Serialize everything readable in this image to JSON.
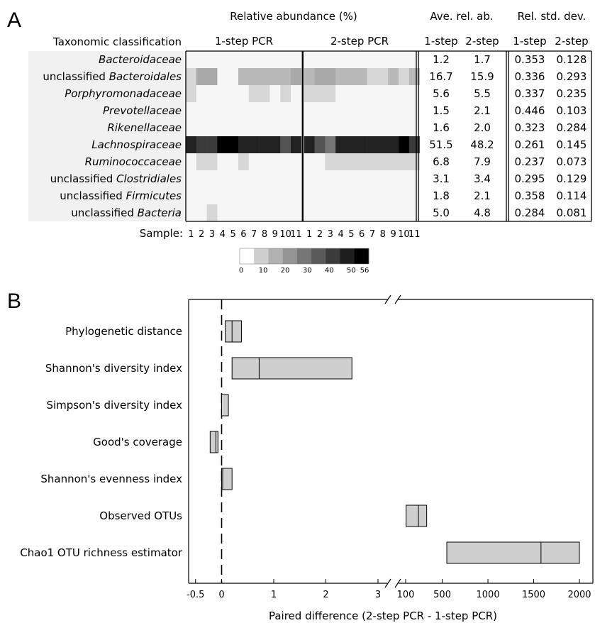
{
  "chart_data": [
    {
      "type": "heatmap",
      "panel_label": "A",
      "title": "Relative abundance (%)",
      "row_header": "Taxonomic classification",
      "group_labels": [
        "1-step PCR",
        "2-step PCR"
      ],
      "sample_axis_label": "Sample:",
      "samples": [
        "1",
        "2",
        "3",
        "4",
        "5",
        "6",
        "7",
        "8",
        "9",
        "10",
        "11"
      ],
      "rows": [
        {
          "prefix": "",
          "name": "Bacteroidaceae"
        },
        {
          "prefix": "unclassified ",
          "name": "Bacteroidales"
        },
        {
          "prefix": "",
          "name": "Porphyromonadaceae"
        },
        {
          "prefix": "",
          "name": "Prevotellaceae"
        },
        {
          "prefix": "",
          "name": "Rikenellaceae"
        },
        {
          "prefix": "",
          "name": "Lachnospiraceae"
        },
        {
          "prefix": "",
          "name": "Ruminococcaceae"
        },
        {
          "prefix": "unclassified ",
          "name": "Clostridiales"
        },
        {
          "prefix": "unclassified ",
          "name": "Firmicutes"
        },
        {
          "prefix": "unclassified ",
          "name": "Bacteria"
        }
      ],
      "values_1step": [
        [
          0,
          0,
          0,
          0,
          0,
          0,
          0,
          0,
          0,
          0,
          0
        ],
        [
          5,
          16,
          16,
          0,
          0,
          12,
          12,
          12,
          12,
          12,
          16
        ],
        [
          5,
          0,
          0,
          0,
          0,
          0,
          5,
          5,
          0,
          5,
          0
        ],
        [
          0,
          0,
          0,
          0,
          0,
          0,
          0,
          0,
          0,
          0,
          0
        ],
        [
          0,
          0,
          0,
          0,
          0,
          0,
          0,
          0,
          0,
          0,
          0
        ],
        [
          48,
          42,
          42,
          56,
          56,
          48,
          48,
          48,
          48,
          36,
          48
        ],
        [
          0,
          5,
          5,
          0,
          0,
          5,
          0,
          0,
          0,
          0,
          0
        ],
        [
          0,
          0,
          0,
          0,
          0,
          0,
          0,
          0,
          0,
          0,
          0
        ],
        [
          0,
          0,
          0,
          0,
          0,
          0,
          0,
          0,
          0,
          0,
          0
        ],
        [
          0,
          0,
          5,
          0,
          0,
          0,
          0,
          0,
          0,
          0,
          0
        ]
      ],
      "values_2step": [
        [
          0,
          0,
          0,
          0,
          0,
          0,
          0,
          0,
          0,
          0,
          0
        ],
        [
          12,
          16,
          16,
          12,
          12,
          12,
          5,
          5,
          12,
          5,
          12
        ],
        [
          5,
          5,
          5,
          0,
          0,
          0,
          0,
          0,
          0,
          0,
          0
        ],
        [
          0,
          0,
          0,
          0,
          0,
          0,
          0,
          0,
          0,
          0,
          0
        ],
        [
          0,
          0,
          0,
          0,
          0,
          0,
          0,
          0,
          0,
          0,
          0
        ],
        [
          48,
          36,
          28,
          48,
          48,
          48,
          48,
          48,
          48,
          56,
          42
        ],
        [
          0,
          0,
          5,
          5,
          5,
          5,
          5,
          5,
          5,
          5,
          5
        ],
        [
          0,
          0,
          0,
          0,
          0,
          0,
          0,
          0,
          0,
          0,
          0
        ],
        [
          0,
          0,
          0,
          0,
          0,
          0,
          0,
          0,
          0,
          0,
          0
        ],
        [
          0,
          0,
          0,
          0,
          0,
          0,
          0,
          0,
          0,
          0,
          0
        ]
      ],
      "colorbar": {
        "ticks": [
          "0",
          "10",
          "20",
          "30",
          "40",
          "50",
          "56"
        ],
        "max": 56
      },
      "table": {
        "avg_header": "Ave. rel. ab.",
        "std_header": "Rel. std. dev.",
        "sub_headers": [
          "1-step",
          "2-step"
        ],
        "avg": [
          [
            "1.2",
            "1.7"
          ],
          [
            "16.7",
            "15.9"
          ],
          [
            "5.6",
            "5.5"
          ],
          [
            "1.5",
            "2.1"
          ],
          [
            "1.6",
            "2.0"
          ],
          [
            "51.5",
            "48.2"
          ],
          [
            "6.8",
            "7.9"
          ],
          [
            "3.1",
            "3.4"
          ],
          [
            "1.8",
            "2.1"
          ],
          [
            "5.0",
            "4.8"
          ]
        ],
        "std": [
          [
            "0.353",
            "0.128"
          ],
          [
            "0.336",
            "0.293"
          ],
          [
            "0.337",
            "0.235"
          ],
          [
            "0.446",
            "0.103"
          ],
          [
            "0.323",
            "0.284"
          ],
          [
            "0.261",
            "0.145"
          ],
          [
            "0.237",
            "0.073"
          ],
          [
            "0.295",
            "0.129"
          ],
          [
            "0.358",
            "0.114"
          ],
          [
            "0.284",
            "0.081"
          ]
        ]
      }
    },
    {
      "type": "box",
      "panel_label": "B",
      "xlabel": "Paired difference (2-step PCR - 1-step PCR)",
      "x_ticks_left": [
        "-0.5",
        "0",
        "1",
        "2",
        "3"
      ],
      "x_ticks_right": [
        "100",
        "500",
        "1000",
        "1500",
        "2000"
      ],
      "x_break": true,
      "metrics": [
        {
          "label": "Phylogenetic distance",
          "segment": "left",
          "low": 0.07,
          "median": 0.2,
          "high": 0.38
        },
        {
          "label": "Shannon's diversity index",
          "segment": "left",
          "low": 0.2,
          "median": 0.72,
          "high": 2.5
        },
        {
          "label": "Simpson's diversity index",
          "segment": "left",
          "low": 0.0,
          "median": 0.0,
          "high": 0.13
        },
        {
          "label": "Good's coverage",
          "segment": "left",
          "low": -0.22,
          "median": -0.11,
          "high": -0.07
        },
        {
          "label": "Shannon's evenness index",
          "segment": "left",
          "low": 0.0,
          "median": 0.02,
          "high": 0.2
        },
        {
          "label": "Observed OTUs",
          "segment": "right",
          "low": 105,
          "median": 240,
          "high": 330
        },
        {
          "label": "Chao1 OTU richness estimator",
          "segment": "right",
          "low": 550,
          "median": 1580,
          "high": 2000
        }
      ]
    }
  ]
}
